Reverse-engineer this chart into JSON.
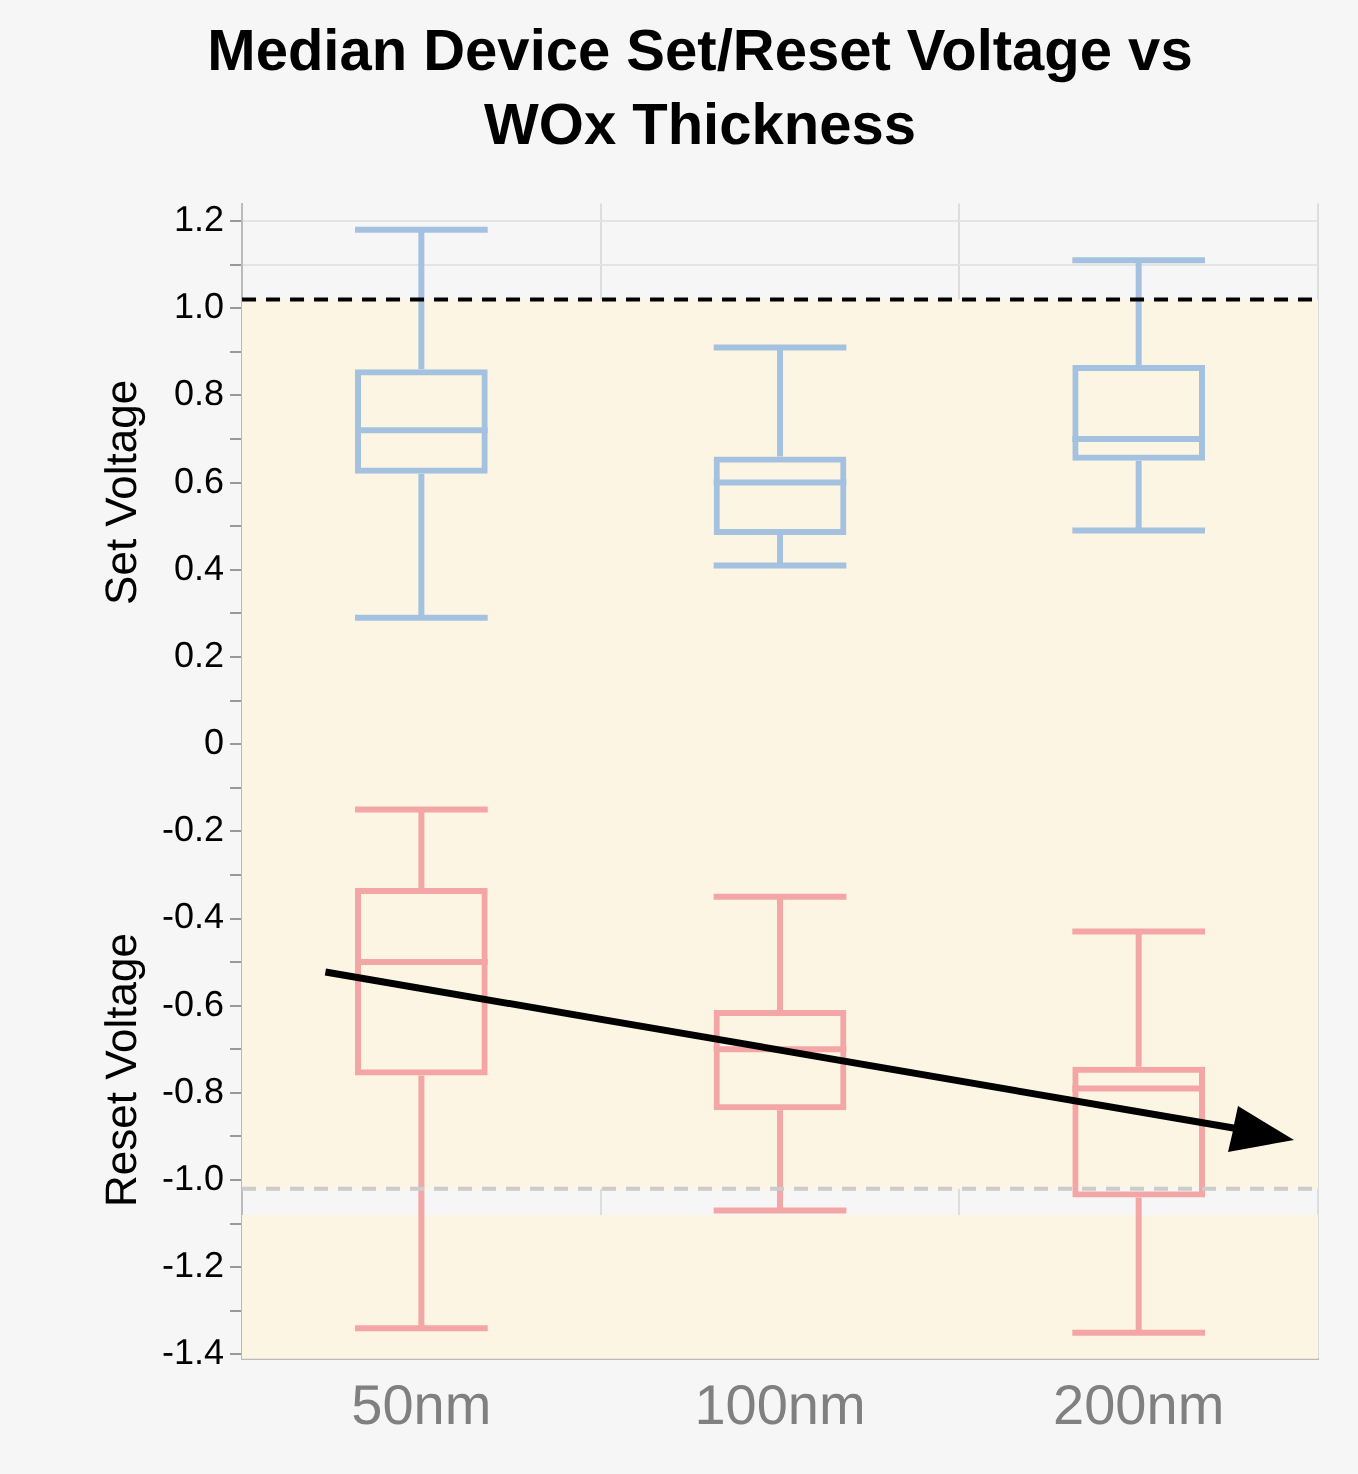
{
  "chart_data": {
    "type": "box",
    "title": "Median Device Set/Reset Voltage vs WOx Thickness",
    "categories": [
      "50nm",
      "100nm",
      "200nm"
    ],
    "series": [
      {
        "color": "#a4c2e0",
        "boxes": [
          {
            "low": 0.29,
            "q1": 0.62,
            "median": 0.72,
            "q3": 0.86,
            "high": 1.18
          },
          {
            "low": 0.41,
            "q1": 0.48,
            "median": 0.6,
            "q3": 0.66,
            "high": 0.91
          },
          {
            "low": 0.49,
            "q1": 0.65,
            "median": 0.7,
            "q3": 0.87,
            "high": 1.11
          }
        ]
      },
      {
        "color": "#f4a5a5",
        "boxes": [
          {
            "low": -1.34,
            "q1": -0.76,
            "median": -0.5,
            "q3": -0.33,
            "high": -0.15
          },
          {
            "low": -1.07,
            "q1": -0.84,
            "median": -0.7,
            "q3": -0.61,
            "high": -0.35
          },
          {
            "low": -1.35,
            "q1": -1.04,
            "median": -0.79,
            "q3": -0.74,
            "high": -0.43
          }
        ]
      }
    ],
    "ylim": [
      -1.41,
      1.24
    ],
    "yticks": [
      -1.4,
      {
        "value": -1.3,
        "label": null
      },
      -1.2,
      {
        "value": -1.1,
        "label": null
      },
      {
        "value": -1.0,
        "label": "-1.0"
      },
      {
        "value": -0.9,
        "label": null
      },
      -0.8,
      {
        "value": -0.7,
        "label": null
      },
      -0.6,
      {
        "value": -0.5,
        "label": null
      },
      -0.4,
      {
        "value": -0.3,
        "label": null
      },
      -0.2,
      {
        "value": -0.1,
        "label": null
      },
      0,
      {
        "value": 0.1,
        "label": null
      },
      0.2,
      {
        "value": 0.3,
        "label": null
      },
      0.4,
      {
        "value": 0.5,
        "label": null
      },
      0.6,
      {
        "value": 0.7,
        "label": null
      },
      0.8,
      {
        "value": 0.9,
        "label": null
      },
      {
        "value": 1.0,
        "label": "1.0"
      },
      {
        "value": 1.1,
        "label": null
      },
      1.2
    ],
    "grid": true,
    "annotations": [
      "Set Voltage",
      "Reset Voltage"
    ],
    "bands": [
      {
        "axis": "y",
        "from": -1.41,
        "to": -1.08,
        "color": "#fdf5e3"
      },
      {
        "axis": "y",
        "from": -1.02,
        "to": 1.02,
        "color": "#fdf5e3"
      }
    ],
    "ref_lines": [
      {
        "axis": "y",
        "value": 1.02,
        "color": "#000000",
        "line_style": "dashed"
      },
      {
        "axis": "y",
        "value": -1.02,
        "color": "#cccccc",
        "line_style": "dashed"
      }
    ]
  }
}
